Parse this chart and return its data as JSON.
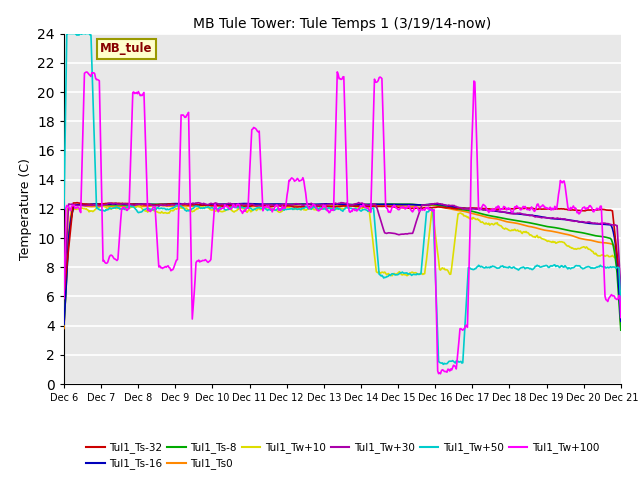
{
  "title": "MB Tule Tower: Tule Temps 1 (3/19/14-now)",
  "ylabel": "Temperature (C)",
  "ylim": [
    0,
    24
  ],
  "yticks": [
    0,
    2,
    4,
    6,
    8,
    10,
    12,
    14,
    16,
    18,
    20,
    22,
    24
  ],
  "xtick_labels": [
    "Dec 6",
    "Dec 7",
    "Dec 8",
    "Dec 9",
    "Dec 10",
    "Dec 11",
    "Dec 12",
    "Dec 13",
    "Dec 14",
    "Dec 15",
    "Dec 16",
    "Dec 17",
    "Dec 18",
    "Dec 19",
    "Dec 20",
    "Dec 21"
  ],
  "background_color": "#e8e8e8",
  "grid_color": "#ffffff",
  "series_colors": {
    "Tul1_Ts-32": "#cc0000",
    "Tul1_Ts-16": "#0000bb",
    "Tul1_Ts-8": "#00aa00",
    "Tul1_Ts0": "#ff8800",
    "Tul1_Tw+10": "#dddd00",
    "Tul1_Tw+30": "#aa00aa",
    "Tul1_Tw+50": "#00cccc",
    "Tul1_Tw+100": "#ff00ff"
  },
  "legend_box": {
    "facecolor": "#ffffcc",
    "edgecolor": "#999900",
    "text_color": "#880000"
  },
  "legend_label": "MB_tule",
  "legend_order": [
    "Tul1_Ts-32",
    "Tul1_Ts-16",
    "Tul1_Ts-8",
    "Tul1_Ts0",
    "Tul1_Tw+10",
    "Tul1_Tw+30",
    "Tul1_Tw+50",
    "Tul1_Tw+100"
  ]
}
